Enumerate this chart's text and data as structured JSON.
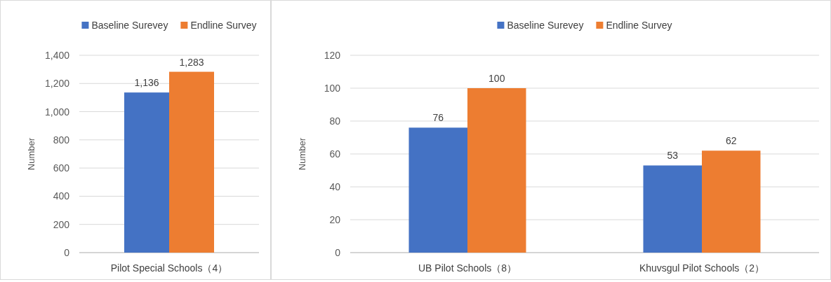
{
  "chart_data": [
    {
      "type": "bar",
      "categories": [
        "Pilot Special Schools（4）"
      ],
      "ylabel": "Number",
      "series": [
        {
          "name": "Baseline Surevey",
          "color": "#4472c4",
          "values": [
            1136
          ]
        },
        {
          "name": "Endline Survey",
          "color": "#ed7d31",
          "values": [
            1283
          ]
        }
      ],
      "ylim": [
        0,
        1400
      ],
      "yticks": [
        {
          "value": 0,
          "label": "0"
        },
        {
          "value": 200,
          "label": "200"
        },
        {
          "value": 400,
          "label": "400"
        },
        {
          "value": 600,
          "label": "600"
        },
        {
          "value": 800,
          "label": "800"
        },
        {
          "value": 1000,
          "label": "1,000"
        },
        {
          "value": 1200,
          "label": "1,200"
        },
        {
          "value": 1400,
          "label": "1,400"
        }
      ],
      "value_labels": [
        [
          "1,136"
        ],
        [
          "1,283"
        ]
      ],
      "grid": "y",
      "legend": "top"
    },
    {
      "type": "bar",
      "categories": [
        "UB Pilot Schools（8）",
        "Khuvsgul  Pilot Schools（2）"
      ],
      "ylabel": "Number",
      "series": [
        {
          "name": "Baseline Surevey",
          "color": "#4472c4",
          "values": [
            76,
            53
          ]
        },
        {
          "name": "Endline Survey",
          "color": "#ed7d31",
          "values": [
            100,
            62
          ]
        }
      ],
      "ylim": [
        0,
        120
      ],
      "yticks": [
        0,
        20,
        40,
        60,
        80,
        100,
        120
      ],
      "data_labels": true,
      "grid": "y",
      "legend": "top"
    }
  ]
}
